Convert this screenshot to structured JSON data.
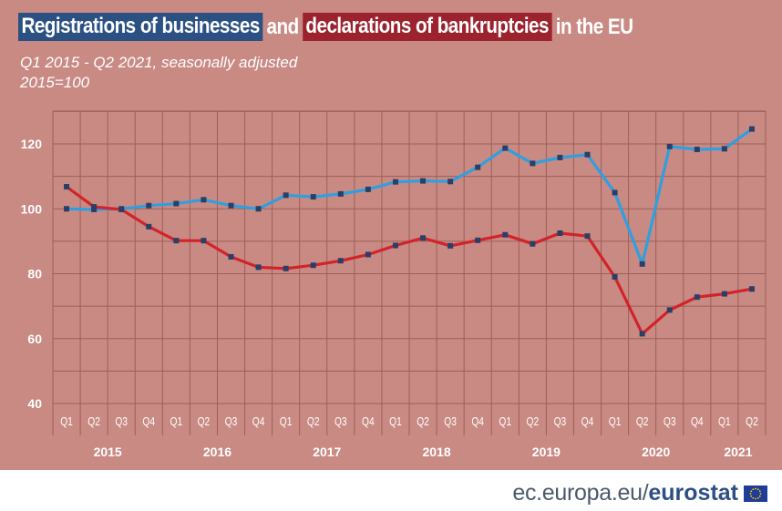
{
  "title": {
    "part1": "Registrations of businesses",
    "part2": "and",
    "part3": "declarations of bankruptcies",
    "part4": "in the EU"
  },
  "subtitle": "Q1 2015  - Q2 2021, seasonally adjusted",
  "index_note": "2015=100",
  "footer": {
    "url": "ec.europa.eu/",
    "brand": "eurostat"
  },
  "colors": {
    "background": "#c98a84",
    "registrations": "#2f9fe0",
    "bankruptcies": "#d2232a",
    "marker": "#2b3f66",
    "title_blue": "#2b5082",
    "title_red": "#9c232e"
  },
  "chart_data": {
    "type": "line",
    "ylim": [
      40,
      130
    ],
    "yticks": [
      "40",
      "60",
      "80",
      "100",
      "120"
    ],
    "grid": true,
    "quarters": [
      "Q1",
      "Q2",
      "Q3",
      "Q4",
      "Q1",
      "Q2",
      "Q3",
      "Q4",
      "Q1",
      "Q2",
      "Q3",
      "Q4",
      "Q1",
      "Q2",
      "Q3",
      "Q4",
      "Q1",
      "Q2",
      "Q3",
      "Q4",
      "Q1",
      "Q2",
      "Q3",
      "Q4",
      "Q1",
      "Q2"
    ],
    "years": [
      "2015",
      "2016",
      "2017",
      "2018",
      "2019",
      "2020",
      "2021"
    ],
    "series": [
      {
        "key": "registrations",
        "values": [
          100,
          99.8,
          100,
          101,
          101.6,
          102.8,
          101,
          100,
          104.2,
          103.7,
          104.6,
          106,
          108.3,
          108.6,
          108.4,
          112.8,
          118.7,
          114,
          115.8,
          116.7,
          105,
          83,
          119.2,
          118.3,
          118.5,
          124.6
        ]
      },
      {
        "key": "bankruptcies",
        "values": [
          106.8,
          100.6,
          99.8,
          94.5,
          90.2,
          90.2,
          85.2,
          82,
          81.6,
          82.6,
          84,
          85.9,
          88.7,
          91,
          88.6,
          90.3,
          92,
          89.2,
          92.5,
          91.6,
          79,
          61.5,
          68.8,
          72.8,
          73.8,
          75.3
        ]
      }
    ]
  }
}
